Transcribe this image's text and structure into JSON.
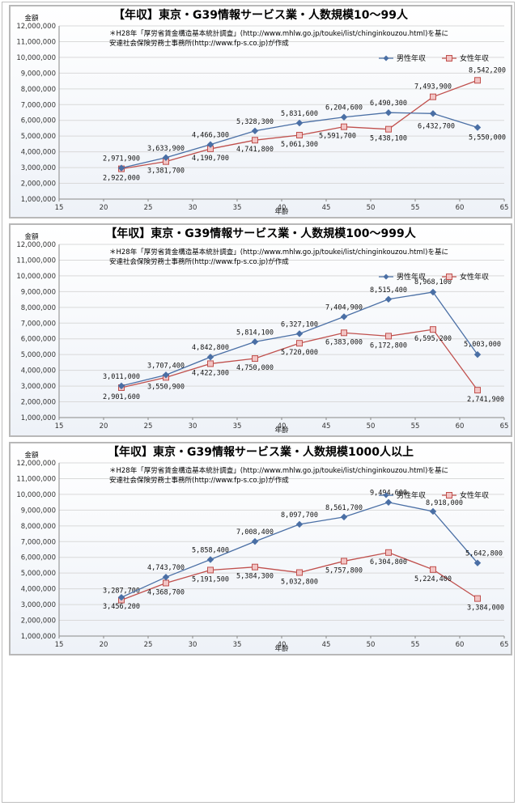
{
  "note_lines": [
    "＊H28年「厚労省賃金構造基本統計調査」(http://www.mhlw.go.jp/toukei/list/chinginkouzou.html)を基に",
    "安達社会保険労務士事務所(http://www.fp-s.co.jp)が作成"
  ],
  "colors": {
    "male": "#4a6fa5",
    "female": "#c0504d",
    "female_fill": "#f2c4c4"
  },
  "chart_data": [
    {
      "type": "line",
      "title": "【年収】東京・G39情報サービス業・人数規模10～99人",
      "xlabel": "年齢",
      "ylabel": "金額",
      "xlim": [
        15,
        65
      ],
      "ylim": [
        1000000,
        12000000
      ],
      "xticks": [
        "15",
        "20",
        "25",
        "30",
        "35",
        "40",
        "45",
        "50",
        "55",
        "60",
        "65"
      ],
      "yticks": [
        "1,000,000",
        "2,000,000",
        "3,000,000",
        "4,000,000",
        "5,000,000",
        "6,000,000",
        "7,000,000",
        "8,000,000",
        "9,000,000",
        "10,000,000",
        "11,000,000",
        "12,000,000"
      ],
      "x": [
        22,
        27,
        32,
        37,
        42,
        47,
        52,
        57,
        62
      ],
      "legend_position": "right",
      "series": [
        {
          "name": "男性年収",
          "values": [
            2971900,
            3633900,
            4466300,
            5328300,
            5831600,
            6204600,
            6490300,
            6432700,
            5550000
          ],
          "labels": [
            "2,971,900",
            "3,633,900",
            "4,466,300",
            "5,328,300",
            "5,831,600",
            "6,204,600",
            "6,490,300",
            "6,432,700",
            "5,550,000"
          ]
        },
        {
          "name": "女性年収",
          "values": [
            2922000,
            3381700,
            4190700,
            4741800,
            5061300,
            5591700,
            5438100,
            7493900,
            8542200
          ],
          "labels": [
            "2,922,000",
            "3,381,700",
            "4,190,700",
            "4,741,800",
            "5,061,300",
            "5,591,700",
            "5,438,100",
            "7,493,900",
            "8,542,200"
          ]
        }
      ]
    },
    {
      "type": "line",
      "title": "【年収】東京・G39情報サービス業・人数規模100～999人",
      "xlabel": "年齢",
      "ylabel": "金額",
      "xlim": [
        15,
        65
      ],
      "ylim": [
        1000000,
        12000000
      ],
      "xticks": [
        "15",
        "20",
        "25",
        "30",
        "35",
        "40",
        "45",
        "50",
        "55",
        "60",
        "65"
      ],
      "yticks": [
        "1,000,000",
        "2,000,000",
        "3,000,000",
        "4,000,000",
        "5,000,000",
        "6,000,000",
        "7,000,000",
        "8,000,000",
        "9,000,000",
        "10,000,000",
        "11,000,000",
        "12,000,000"
      ],
      "x": [
        22,
        27,
        32,
        37,
        42,
        47,
        52,
        57,
        62
      ],
      "legend_position": "right",
      "series": [
        {
          "name": "男性年収",
          "values": [
            3011000,
            3707400,
            4842800,
            5814100,
            6327100,
            7404900,
            8515400,
            8968100,
            5003000
          ],
          "labels": [
            "3,011,000",
            "3,707,400",
            "4,842,800",
            "5,814,100",
            "6,327,100",
            "7,404,900",
            "8,515,400",
            "8,968,100",
            "5,003,000"
          ]
        },
        {
          "name": "女性年収",
          "values": [
            2901600,
            3550900,
            4422300,
            4750000,
            5720000,
            6383000,
            6172800,
            6595200,
            2741900
          ],
          "labels": [
            "2,901,600",
            "3,550,900",
            "4,422,300",
            "4,750,000",
            "5,720,000",
            "6,383,000",
            "6,172,800",
            "6,595,200",
            "2,741,900"
          ]
        }
      ]
    },
    {
      "type": "line",
      "title": "【年収】東京・G39情報サービス業・人数規模1000人以上",
      "xlabel": "年齢",
      "ylabel": "金額",
      "xlim": [
        15,
        65
      ],
      "ylim": [
        1000000,
        12000000
      ],
      "xticks": [
        "15",
        "20",
        "25",
        "30",
        "35",
        "40",
        "45",
        "50",
        "55",
        "60",
        "65"
      ],
      "yticks": [
        "1,000,000",
        "2,000,000",
        "3,000,000",
        "4,000,000",
        "5,000,000",
        "6,000,000",
        "7,000,000",
        "8,000,000",
        "9,000,000",
        "10,000,000",
        "11,000,000",
        "12,000,000"
      ],
      "x": [
        22,
        27,
        32,
        37,
        42,
        47,
        52,
        57,
        62
      ],
      "legend_position": "right",
      "series": [
        {
          "name": "男性年収",
          "values": [
            3456200,
            4743700,
            5858400,
            7008400,
            8097700,
            8561700,
            9494600,
            8918000,
            5642800
          ],
          "labels": [
            "3,456,200",
            "4,743,700",
            "5,858,400",
            "7,008,400",
            "8,097,700",
            "8,561,700",
            "9,494,600",
            "8,918,000",
            "5,642,800"
          ]
        },
        {
          "name": "女性年収",
          "values": [
            3287700,
            4368700,
            5191500,
            5384300,
            5032800,
            5757800,
            6304800,
            5224400,
            3384000
          ],
          "labels": [
            "3,287,700",
            "4,368,700",
            "5,191,500",
            "5,384,300",
            "5,032,800",
            "5,757,800",
            "6,304,800",
            "5,224,400",
            "3,384,000"
          ]
        }
      ]
    }
  ]
}
